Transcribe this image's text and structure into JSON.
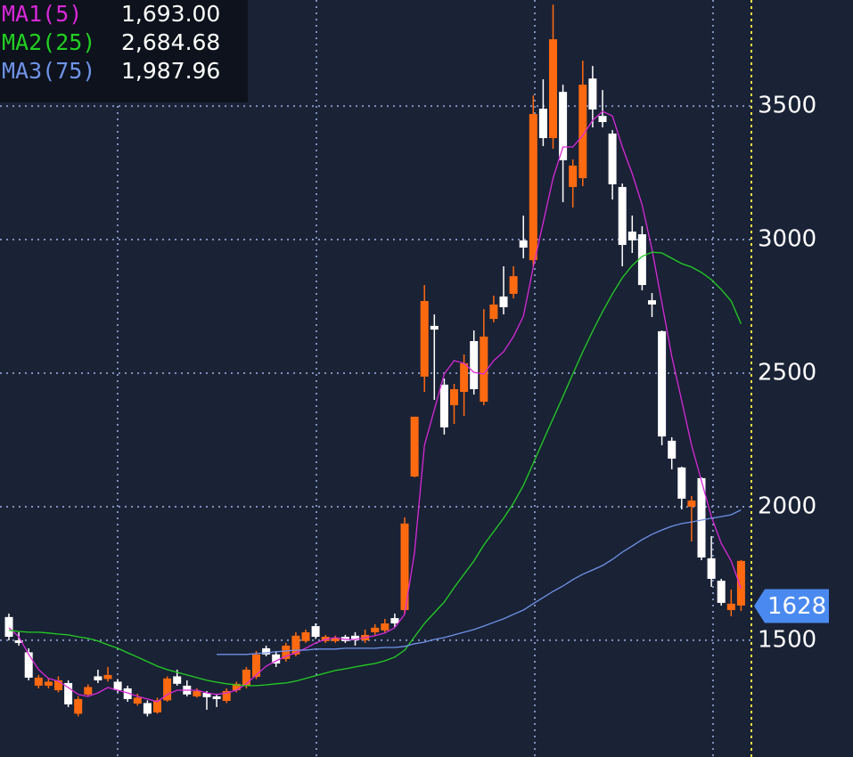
{
  "chart_data": {
    "type": "candlestick",
    "up_color": "#ff6a10",
    "down_color": "#ffffff",
    "open": [
      1587,
      1500,
      1455,
      1330,
      1330,
      1313,
      1340,
      1225,
      1297,
      1365,
      1355,
      1345,
      1320,
      1263,
      1265,
      1230,
      1275,
      1365,
      1330,
      1290,
      1303,
      1290,
      1273,
      1313,
      1330,
      1363,
      1470,
      1447,
      1430,
      1447,
      1497,
      1553,
      1497,
      1497,
      1513,
      1517,
      1500,
      1530,
      1537,
      1583,
      1613,
      2113,
      2487,
      2677,
      2457,
      2380,
      2430,
      2620,
      2393,
      2703,
      2787,
      2797,
      2997,
      2923,
      3490,
      3380,
      3553,
      3197,
      3230,
      3603,
      3463,
      3397,
      3197,
      3030,
      3020,
      2773,
      2657,
      2247,
      2147,
      2000,
      2107,
      1807,
      1723,
      1613,
      1630
    ],
    "high": [
      1600,
      1530,
      1470,
      1370,
      1355,
      1365,
      1350,
      1290,
      1335,
      1390,
      1400,
      1355,
      1330,
      1300,
      1275,
      1285,
      1365,
      1390,
      1350,
      1320,
      1310,
      1300,
      1320,
      1345,
      1400,
      1460,
      1480,
      1460,
      1490,
      1530,
      1540,
      1563,
      1520,
      1517,
      1520,
      1530,
      1540,
      1560,
      1580,
      1600,
      1960,
      2337,
      2830,
      2720,
      2480,
      2460,
      2570,
      2660,
      2740,
      2790,
      2900,
      2900,
      3090,
      3540,
      3600,
      3880,
      3580,
      3300,
      3670,
      3650,
      3560,
      3410,
      3210,
      3090,
      3050,
      2800,
      2660,
      2260,
      2150,
      2040,
      2110,
      1890,
      1730,
      1690,
      1800
    ],
    "low": [
      1500,
      1480,
      1350,
      1320,
      1320,
      1305,
      1250,
      1215,
      1290,
      1340,
      1345,
      1305,
      1270,
      1255,
      1215,
      1225,
      1270,
      1330,
      1290,
      1285,
      1240,
      1250,
      1265,
      1305,
      1320,
      1355,
      1440,
      1400,
      1420,
      1440,
      1490,
      1505,
      1490,
      1490,
      1490,
      1480,
      1490,
      1520,
      1530,
      1550,
      1600,
      2110,
      2430,
      2400,
      2270,
      2310,
      2340,
      2420,
      2380,
      2690,
      2720,
      2780,
      2930,
      2900,
      3350,
      3340,
      3140,
      3120,
      3200,
      3420,
      3420,
      3150,
      2900,
      2950,
      2810,
      2710,
      2230,
      2140,
      1990,
      1870,
      1800,
      1700,
      1630,
      1590,
      1610
    ],
    "close": [
      1513,
      1490,
      1360,
      1360,
      1345,
      1350,
      1260,
      1280,
      1325,
      1350,
      1370,
      1313,
      1280,
      1285,
      1225,
      1275,
      1357,
      1337,
      1297,
      1310,
      1287,
      1280,
      1310,
      1337,
      1390,
      1447,
      1447,
      1413,
      1480,
      1517,
      1530,
      1513,
      1513,
      1510,
      1497,
      1500,
      1520,
      1547,
      1563,
      1563,
      1937,
      2337,
      2770,
      2663,
      2297,
      2440,
      2537,
      2440,
      2637,
      2757,
      2747,
      2863,
      2970,
      3470,
      3380,
      3750,
      3297,
      3277,
      3580,
      3487,
      3440,
      3207,
      2980,
      2997,
      2830,
      2757,
      2263,
      2180,
      2030,
      2023,
      1810,
      1730,
      1640,
      1637,
      1797
    ],
    "series": [
      {
        "name": "MA1(5)",
        "color": "#d828d8",
        "legend_value": "1,693.00",
        "values": [
          1547,
          1513,
          1447,
          1390,
          1357,
          1347,
          1323,
          1297,
          1290,
          1303,
          1323,
          1313,
          1303,
          1290,
          1280,
          1270,
          1297,
          1313,
          1313,
          1313,
          1303,
          1297,
          1303,
          1313,
          1337,
          1370,
          1403,
          1423,
          1440,
          1453,
          1470,
          1490,
          1503,
          1510,
          1503,
          1503,
          1510,
          1517,
          1527,
          1547,
          1597,
          1830,
          2230,
          2363,
          2497,
          2547,
          2537,
          2503,
          2497,
          2547,
          2580,
          2637,
          2713,
          2897,
          3063,
          3230,
          3347,
          3347,
          3390,
          3447,
          3480,
          3463,
          3347,
          3247,
          3130,
          2963,
          2763,
          2563,
          2397,
          2230,
          2097,
          1963,
          1863,
          1797,
          1693
        ]
      },
      {
        "name": "MA2(25)",
        "color": "#22d022",
        "legend_value": "2,684.68",
        "values": [
          1537,
          1533,
          1530,
          1530,
          1527,
          1523,
          1520,
          1513,
          1507,
          1497,
          1483,
          1470,
          1453,
          1437,
          1420,
          1403,
          1390,
          1380,
          1370,
          1360,
          1350,
          1343,
          1337,
          1333,
          1330,
          1330,
          1333,
          1337,
          1340,
          1347,
          1357,
          1367,
          1377,
          1387,
          1393,
          1400,
          1407,
          1413,
          1423,
          1437,
          1463,
          1513,
          1563,
          1603,
          1643,
          1697,
          1747,
          1797,
          1857,
          1907,
          1957,
          2013,
          2080,
          2163,
          2247,
          2330,
          2413,
          2497,
          2580,
          2657,
          2730,
          2797,
          2857,
          2903,
          2937,
          2953,
          2950,
          2930,
          2910,
          2897,
          2877,
          2850,
          2813,
          2770,
          2684.68
        ]
      },
      {
        "name": "MA3(75)",
        "color": "#6f93e8",
        "legend_value": "1,987.96",
        "values": [
          null,
          null,
          null,
          null,
          null,
          null,
          null,
          null,
          null,
          null,
          null,
          null,
          null,
          null,
          null,
          null,
          null,
          null,
          null,
          null,
          null,
          1447,
          1447,
          1447,
          1447,
          1450,
          1453,
          1457,
          1460,
          1463,
          1463,
          1467,
          1467,
          1467,
          1470,
          1470,
          1470,
          1470,
          1473,
          1473,
          1477,
          1487,
          1493,
          1503,
          1510,
          1520,
          1530,
          1540,
          1553,
          1567,
          1580,
          1597,
          1613,
          1637,
          1660,
          1683,
          1703,
          1727,
          1747,
          1763,
          1780,
          1803,
          1830,
          1853,
          1877,
          1897,
          1913,
          1927,
          1937,
          1943,
          1950,
          1957,
          1963,
          1970,
          1987.96
        ]
      }
    ],
    "last_price": 1628,
    "last_price_color": "#4a8af0",
    "ylim": [
      1063,
      3897
    ],
    "yticks": [
      1500,
      2000,
      2500,
      3000,
      3500
    ],
    "grid": true
  }
}
